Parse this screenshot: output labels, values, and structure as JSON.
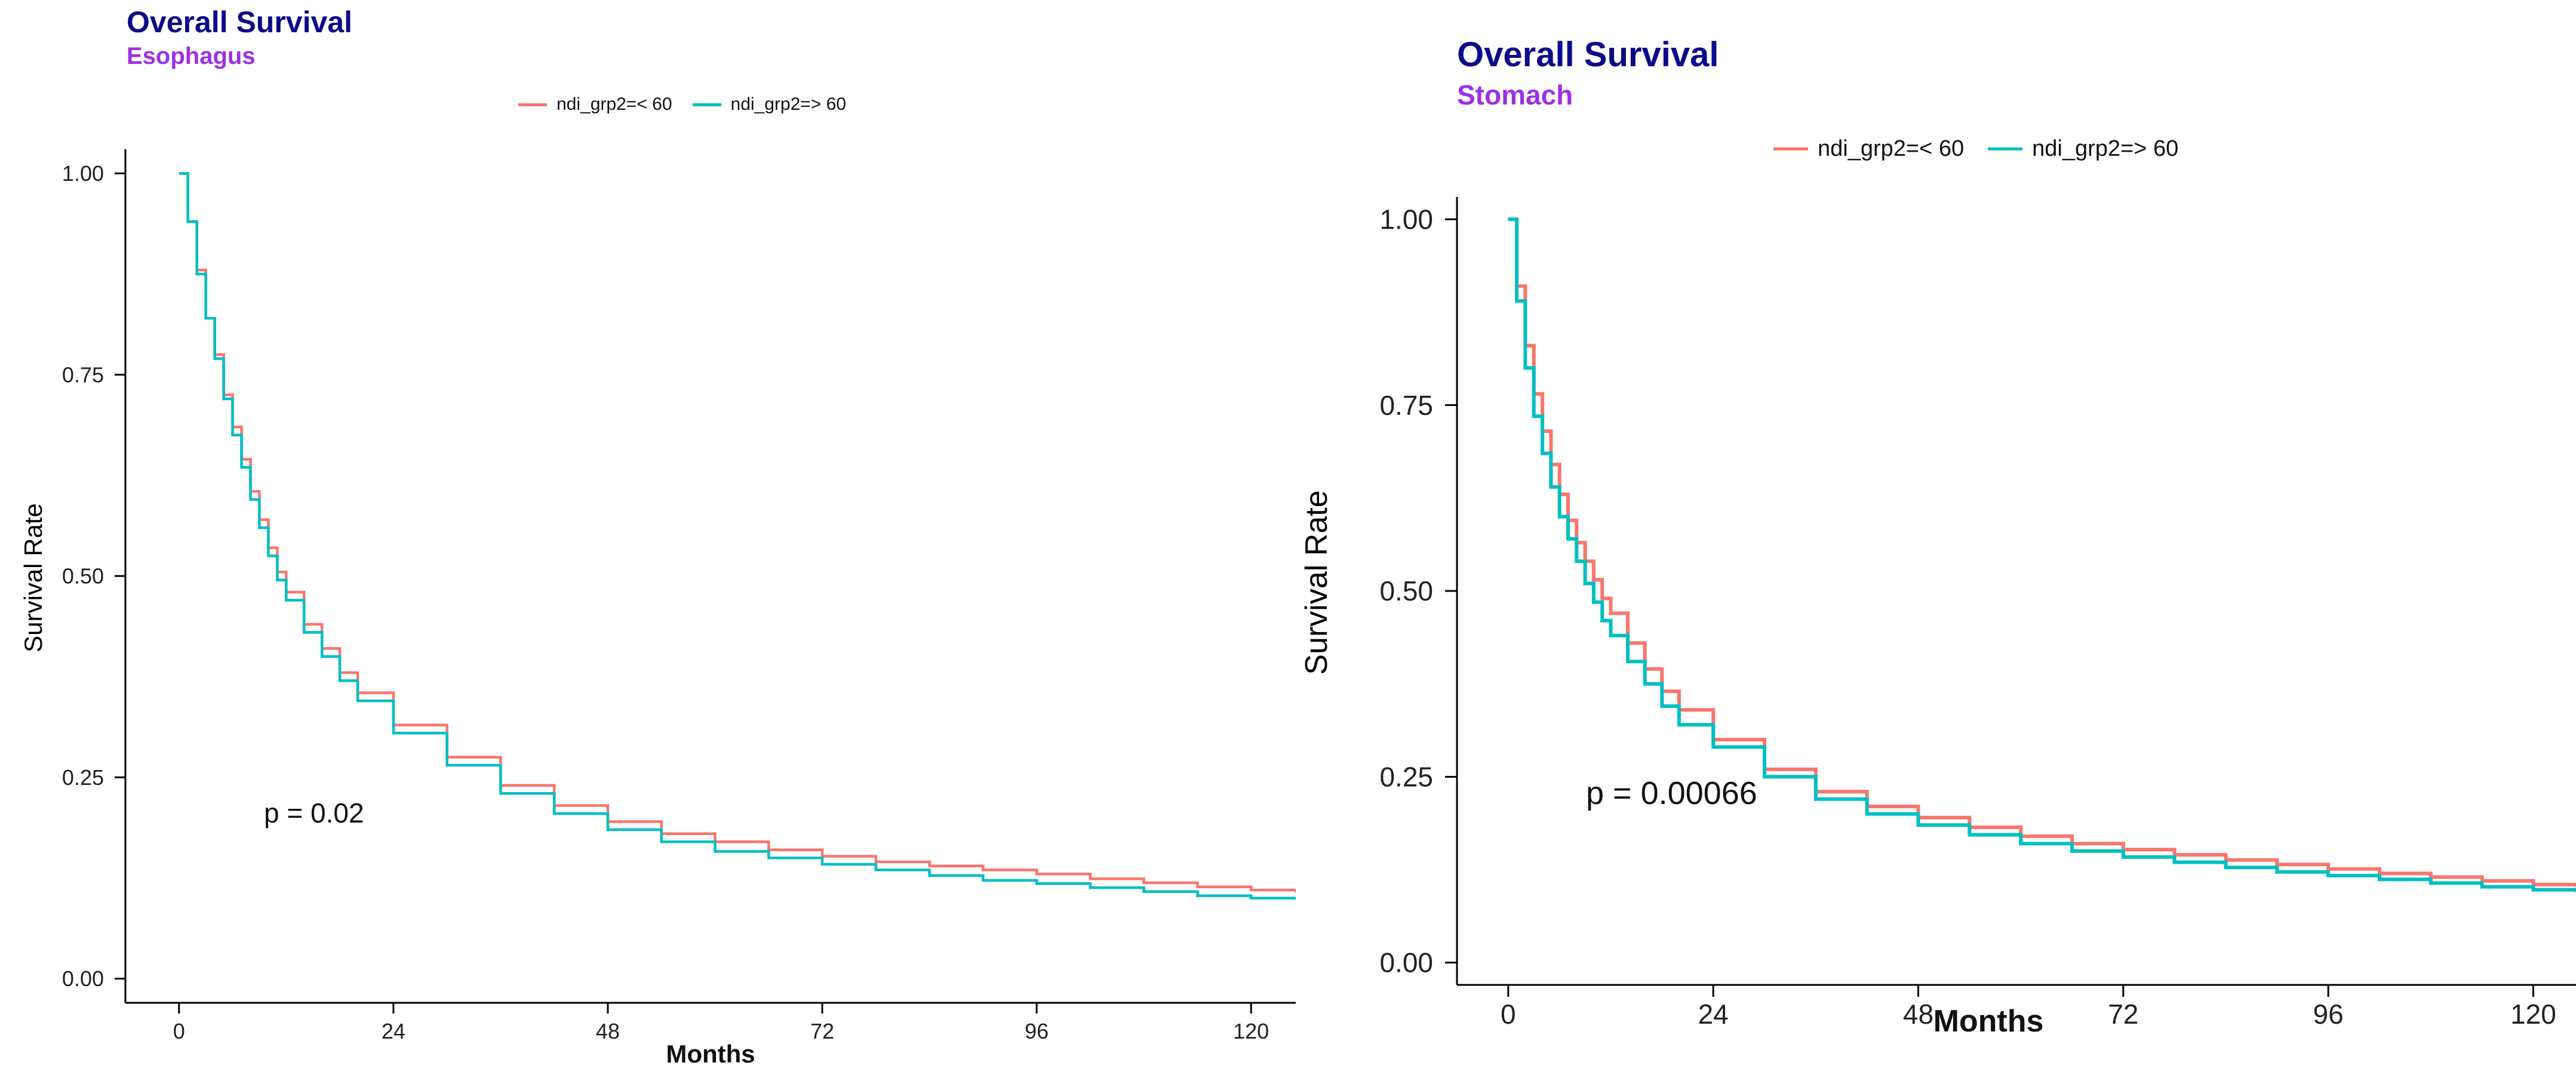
{
  "chart_data": [
    {
      "type": "line",
      "title": "Overall Survival",
      "subtitle": "Esophagus",
      "xlabel": "Months",
      "ylabel": "Survival Rate",
      "xlim": [
        -6,
        125
      ],
      "ylim": [
        -0.03,
        1.03
      ],
      "xticks": [
        0,
        24,
        48,
        72,
        96,
        120
      ],
      "yticks": [
        0.0,
        0.25,
        0.5,
        0.75,
        1.0
      ],
      "ytick_labels": [
        "0.00",
        "0.25",
        "0.50",
        "0.75",
        "1.00"
      ],
      "legend_position": "top",
      "annotation": "p = 0.02",
      "series": [
        {
          "name": "ndi_grp2=< 60",
          "color": "#f8766d",
          "x": [
            0,
            1,
            2,
            3,
            4,
            5,
            6,
            7,
            8,
            9,
            10,
            11,
            12,
            14,
            16,
            18,
            20,
            24,
            30,
            36,
            42,
            48,
            54,
            60,
            66,
            72,
            78,
            84,
            90,
            96,
            102,
            108,
            114,
            120,
            125
          ],
          "y": [
            1.0,
            0.94,
            0.88,
            0.82,
            0.775,
            0.725,
            0.685,
            0.645,
            0.605,
            0.57,
            0.535,
            0.505,
            0.48,
            0.44,
            0.41,
            0.38,
            0.355,
            0.315,
            0.275,
            0.24,
            0.215,
            0.195,
            0.18,
            0.17,
            0.16,
            0.152,
            0.145,
            0.14,
            0.135,
            0.13,
            0.124,
            0.119,
            0.114,
            0.11,
            0.107
          ]
        },
        {
          "name": "ndi_grp2=> 60",
          "color": "#00bfc4",
          "x": [
            0,
            1,
            2,
            3,
            4,
            5,
            6,
            7,
            8,
            9,
            10,
            11,
            12,
            14,
            16,
            18,
            20,
            24,
            30,
            36,
            42,
            48,
            54,
            60,
            66,
            72,
            78,
            84,
            90,
            96,
            102,
            108,
            114,
            120,
            125
          ],
          "y": [
            1.0,
            0.94,
            0.875,
            0.82,
            0.77,
            0.72,
            0.675,
            0.635,
            0.595,
            0.56,
            0.525,
            0.495,
            0.47,
            0.43,
            0.4,
            0.37,
            0.345,
            0.305,
            0.265,
            0.23,
            0.205,
            0.185,
            0.17,
            0.158,
            0.15,
            0.142,
            0.135,
            0.128,
            0.122,
            0.118,
            0.113,
            0.108,
            0.103,
            0.1,
            0.098
          ]
        }
      ]
    },
    {
      "type": "line",
      "title": "Overall Survival",
      "subtitle": "Stomach",
      "xlabel": "Months",
      "ylabel": "Survival Rate",
      "xlim": [
        -6,
        125
      ],
      "ylim": [
        -0.03,
        1.03
      ],
      "xticks": [
        0,
        24,
        48,
        72,
        96,
        120
      ],
      "yticks": [
        0.0,
        0.25,
        0.5,
        0.75,
        1.0
      ],
      "ytick_labels": [
        "0.00",
        "0.25",
        "0.50",
        "0.75",
        "1.00"
      ],
      "legend_position": "top",
      "annotation": "p = 0.00066",
      "series": [
        {
          "name": "ndi_grp2=< 60",
          "color": "#f8766d",
          "x": [
            0,
            1,
            2,
            3,
            4,
            5,
            6,
            7,
            8,
            9,
            10,
            11,
            12,
            14,
            16,
            18,
            20,
            24,
            30,
            36,
            42,
            48,
            54,
            60,
            66,
            72,
            78,
            84,
            90,
            96,
            102,
            108,
            114,
            120,
            125
          ],
          "y": [
            1.0,
            0.91,
            0.83,
            0.765,
            0.715,
            0.67,
            0.63,
            0.595,
            0.565,
            0.54,
            0.515,
            0.49,
            0.47,
            0.43,
            0.395,
            0.365,
            0.34,
            0.3,
            0.26,
            0.23,
            0.21,
            0.195,
            0.182,
            0.17,
            0.16,
            0.152,
            0.145,
            0.138,
            0.132,
            0.126,
            0.12,
            0.115,
            0.11,
            0.105,
            0.102
          ]
        },
        {
          "name": "ndi_grp2=> 60",
          "color": "#00bfc4",
          "x": [
            0,
            1,
            2,
            3,
            4,
            5,
            6,
            7,
            8,
            9,
            10,
            11,
            12,
            14,
            16,
            18,
            20,
            24,
            30,
            36,
            42,
            48,
            54,
            60,
            66,
            72,
            78,
            84,
            90,
            96,
            102,
            108,
            114,
            120,
            125
          ],
          "y": [
            1.0,
            0.89,
            0.8,
            0.735,
            0.685,
            0.64,
            0.6,
            0.57,
            0.54,
            0.51,
            0.485,
            0.46,
            0.44,
            0.405,
            0.375,
            0.345,
            0.32,
            0.29,
            0.25,
            0.22,
            0.2,
            0.185,
            0.172,
            0.16,
            0.15,
            0.142,
            0.135,
            0.128,
            0.122,
            0.117,
            0.112,
            0.107,
            0.102,
            0.098,
            0.095
          ]
        }
      ]
    }
  ]
}
